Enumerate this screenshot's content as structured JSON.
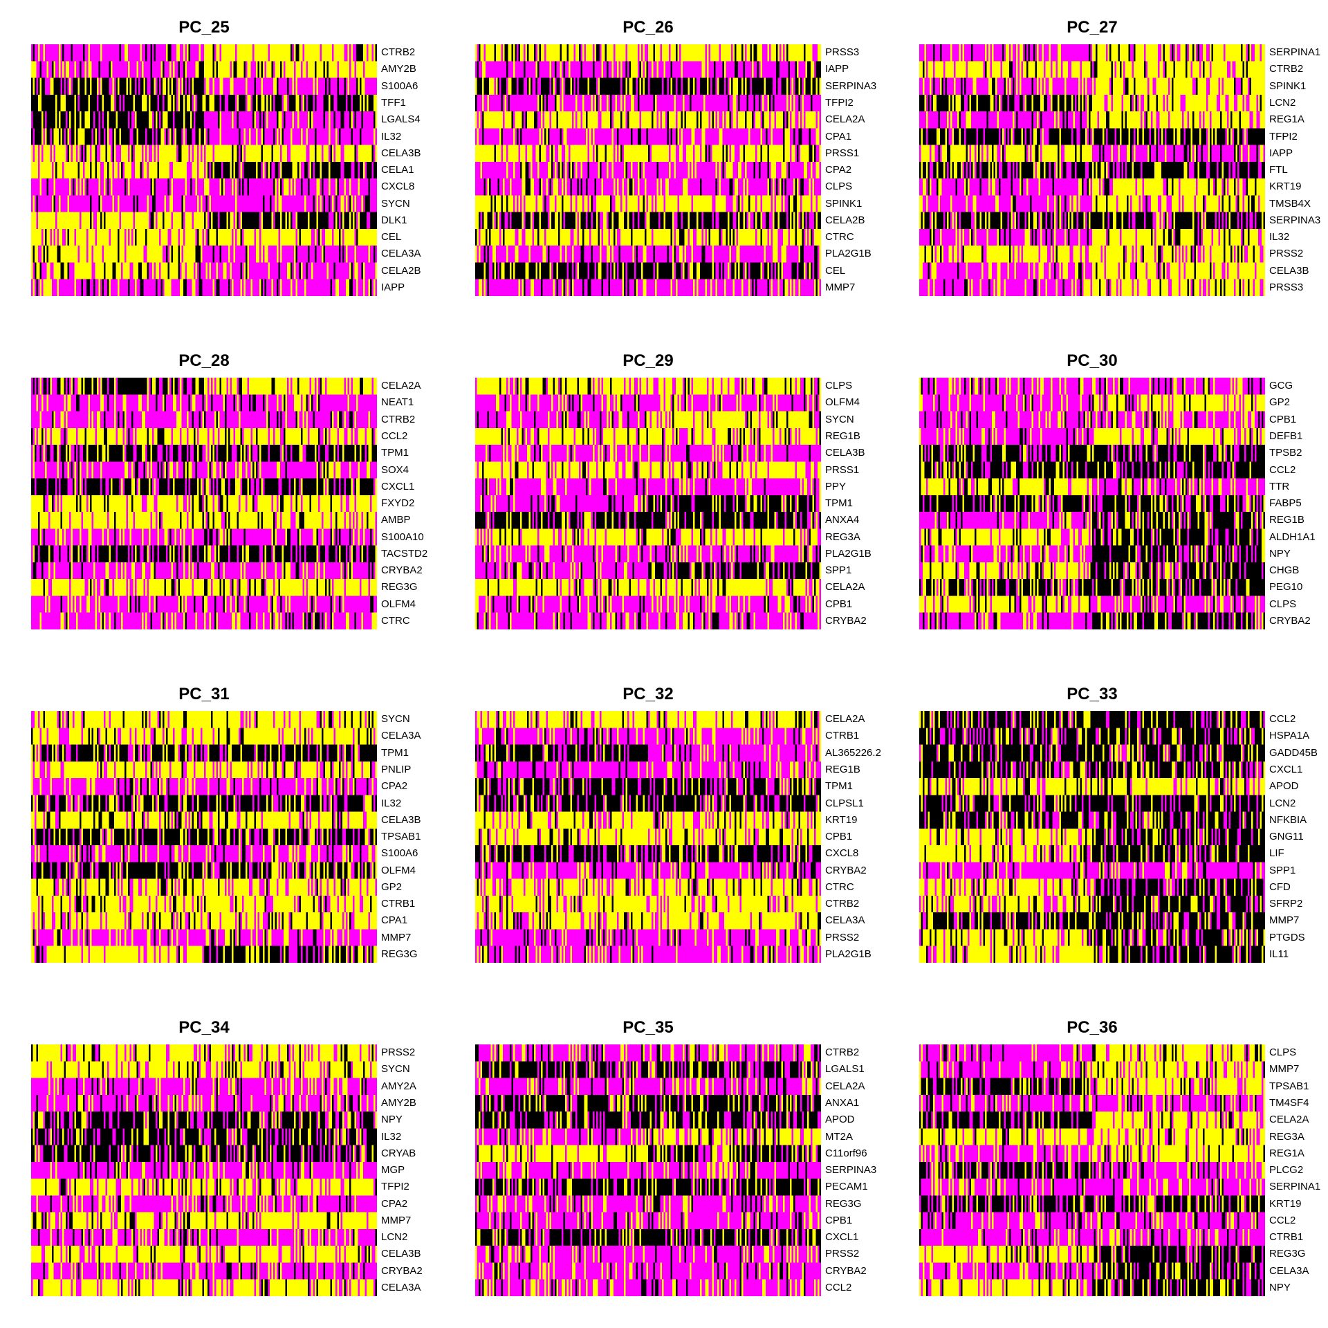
{
  "palette": {
    "low": "#ff00ff",
    "mid": "#000000",
    "high": "#ffff00"
  },
  "chart_data": [
    {
      "type": "heatmap",
      "title": "PC_25",
      "split_fraction": 0.5,
      "genes": [
        "CTRB2",
        "AMY2B",
        "S100A6",
        "TFF1",
        "LGALS4",
        "IL32",
        "CELA3B",
        "CELA1",
        "CXCL8",
        "SYCN",
        "DLK1",
        "CEL",
        "CELA3A",
        "CELA2B",
        "IAPP"
      ],
      "left_state": [
        "low",
        "low",
        "mid",
        "mid",
        "mid",
        "mid",
        "high",
        "high",
        "low",
        "low",
        "high",
        "high",
        "high",
        "high",
        "low"
      ],
      "right_state": [
        "high",
        "high",
        "low",
        "mid",
        "low",
        "low",
        "high",
        "mid",
        "low",
        "low",
        "mid",
        "high",
        "low",
        "low",
        "low"
      ]
    },
    {
      "type": "heatmap",
      "title": "PC_26",
      "split_fraction": 0.5,
      "genes": [
        "PRSS3",
        "IAPP",
        "SERPINA3",
        "TFPI2",
        "CELA2A",
        "CPA1",
        "PRSS1",
        "CPA2",
        "CLPS",
        "SPINK1",
        "CELA2B",
        "CTRC",
        "PLA2G1B",
        "CEL",
        "MMP7"
      ],
      "left_state": [
        "high",
        "low",
        "mid",
        "low",
        "high",
        "low",
        "high",
        "low",
        "low",
        "high",
        "mid",
        "high",
        "low",
        "mid",
        "low"
      ],
      "right_state": [
        "high",
        "low",
        "mid",
        "low",
        "high",
        "low",
        "high",
        "low",
        "low",
        "high",
        "mid",
        "high",
        "low",
        "mid",
        "low"
      ]
    },
    {
      "type": "heatmap",
      "title": "PC_27",
      "split_fraction": 0.5,
      "genes": [
        "SERPINA1",
        "CTRB2",
        "SPINK1",
        "LCN2",
        "REG1A",
        "TFPI2",
        "IAPP",
        "FTL",
        "KRT19",
        "TMSB4X",
        "SERPINA3",
        "IL32",
        "PRSS2",
        "CELA3B",
        "PRSS3"
      ],
      "left_state": [
        "low",
        "high",
        "low",
        "mid",
        "low",
        "mid",
        "high",
        "mid",
        "low",
        "low",
        "mid",
        "low",
        "high",
        "low",
        "low"
      ],
      "right_state": [
        "high",
        "high",
        "high",
        "high",
        "high",
        "mid",
        "low",
        "mid",
        "high",
        "high",
        "mid",
        "high",
        "high",
        "high",
        "high"
      ]
    },
    {
      "type": "heatmap",
      "title": "PC_28",
      "split_fraction": 0.5,
      "genes": [
        "CELA2A",
        "NEAT1",
        "CTRB2",
        "CCL2",
        "TPM1",
        "SOX4",
        "CXCL1",
        "FXYD2",
        "AMBP",
        "S100A10",
        "TACSTD2",
        "CRYBA2",
        "REG3G",
        "OLFM4",
        "CTRC"
      ],
      "left_state": [
        "mid",
        "low",
        "low",
        "high",
        "mid",
        "low",
        "mid",
        "high",
        "high",
        "low",
        "mid",
        "low",
        "high",
        "low",
        "low"
      ],
      "right_state": [
        "high",
        "low",
        "low",
        "high",
        "mid",
        "low",
        "mid",
        "high",
        "high",
        "low",
        "mid",
        "low",
        "high",
        "low",
        "low"
      ]
    },
    {
      "type": "heatmap",
      "title": "PC_29",
      "split_fraction": 0.5,
      "genes": [
        "CLPS",
        "OLFM4",
        "SYCN",
        "REG1B",
        "CELA3B",
        "PRSS1",
        "PPY",
        "TPM1",
        "ANXA4",
        "REG3A",
        "PLA2G1B",
        "SPP1",
        "CELA2A",
        "CPB1",
        "CRYBA2"
      ],
      "left_state": [
        "high",
        "low",
        "low",
        "high",
        "low",
        "high",
        "low",
        "low",
        "mid",
        "high",
        "low",
        "low",
        "high",
        "low",
        "low"
      ],
      "right_state": [
        "high",
        "low",
        "high",
        "high",
        "low",
        "high",
        "low",
        "mid",
        "mid",
        "high",
        "low",
        "mid",
        "high",
        "low",
        "low"
      ]
    },
    {
      "type": "heatmap",
      "title": "PC_30",
      "split_fraction": 0.5,
      "genes": [
        "GCG",
        "GP2",
        "CPB1",
        "DEFB1",
        "TPSB2",
        "CCL2",
        "TTR",
        "FABP5",
        "REG1B",
        "ALDH1A1",
        "NPY",
        "CHGB",
        "PEG10",
        "CLPS",
        "CRYBA2"
      ],
      "left_state": [
        "low",
        "low",
        "low",
        "low",
        "mid",
        "mid",
        "high",
        "mid",
        "low",
        "high",
        "low",
        "high",
        "mid",
        "high",
        "low"
      ],
      "right_state": [
        "low",
        "high",
        "low",
        "high",
        "mid",
        "mid",
        "low",
        "mid",
        "mid",
        "mid",
        "mid",
        "mid",
        "mid",
        "low",
        "mid"
      ]
    },
    {
      "type": "heatmap",
      "title": "PC_31",
      "split_fraction": 0.5,
      "genes": [
        "SYCN",
        "CELA3A",
        "TPM1",
        "PNLIP",
        "CPA2",
        "IL32",
        "CELA3B",
        "TPSAB1",
        "S100A6",
        "OLFM4",
        "GP2",
        "CTRB1",
        "CPA1",
        "MMP7",
        "REG3G"
      ],
      "left_state": [
        "high",
        "high",
        "mid",
        "high",
        "low",
        "mid",
        "high",
        "mid",
        "low",
        "mid",
        "high",
        "high",
        "high",
        "low",
        "high"
      ],
      "right_state": [
        "high",
        "high",
        "mid",
        "high",
        "low",
        "mid",
        "high",
        "mid",
        "low",
        "mid",
        "high",
        "high",
        "high",
        "low",
        "mid"
      ]
    },
    {
      "type": "heatmap",
      "title": "PC_32",
      "split_fraction": 0.5,
      "genes": [
        "CELA2A",
        "CTRB1",
        "AL365226.2",
        "REG1B",
        "TPM1",
        "CLPSL1",
        "KRT19",
        "CPB1",
        "CXCL8",
        "CRYBA2",
        "CTRC",
        "CTRB2",
        "CELA3A",
        "PRSS2",
        "PLA2G1B"
      ],
      "left_state": [
        "high",
        "low",
        "mid",
        "low",
        "mid",
        "mid",
        "high",
        "high",
        "mid",
        "low",
        "high",
        "high",
        "high",
        "low",
        "low"
      ],
      "right_state": [
        "high",
        "low",
        "low",
        "low",
        "mid",
        "mid",
        "high",
        "high",
        "mid",
        "low",
        "high",
        "high",
        "high",
        "low",
        "low"
      ]
    },
    {
      "type": "heatmap",
      "title": "PC_33",
      "split_fraction": 0.5,
      "genes": [
        "CCL2",
        "HSPA1A",
        "GADD45B",
        "CXCL1",
        "APOD",
        "LCN2",
        "NFKBIA",
        "GNG11",
        "LIF",
        "SPP1",
        "CFD",
        "SFRP2",
        "MMP7",
        "PTGDS",
        "IL11"
      ],
      "left_state": [
        "mid",
        "mid",
        "mid",
        "mid",
        "high",
        "mid",
        "mid",
        "high",
        "high",
        "low",
        "high",
        "high",
        "mid",
        "high",
        "high"
      ],
      "right_state": [
        "mid",
        "mid",
        "mid",
        "mid",
        "high",
        "mid",
        "mid",
        "mid",
        "mid",
        "low",
        "mid",
        "mid",
        "mid",
        "mid",
        "mid"
      ]
    },
    {
      "type": "heatmap",
      "title": "PC_34",
      "split_fraction": 0.5,
      "genes": [
        "PRSS2",
        "SYCN",
        "AMY2A",
        "AMY2B",
        "NPY",
        "IL32",
        "CRYAB",
        "MGP",
        "TFPI2",
        "CPA2",
        "MMP7",
        "LCN2",
        "CELA3B",
        "CRYBA2",
        "CELA3A"
      ],
      "left_state": [
        "high",
        "high",
        "low",
        "low",
        "mid",
        "mid",
        "mid",
        "low",
        "high",
        "low",
        "high",
        "low",
        "high",
        "low",
        "high"
      ],
      "right_state": [
        "high",
        "high",
        "low",
        "low",
        "mid",
        "mid",
        "mid",
        "low",
        "high",
        "low",
        "high",
        "low",
        "high",
        "low",
        "high"
      ]
    },
    {
      "type": "heatmap",
      "title": "PC_35",
      "split_fraction": 0.5,
      "genes": [
        "CTRB2",
        "LGALS1",
        "CELA2A",
        "ANXA1",
        "APOD",
        "MT2A",
        "C11orf96",
        "SERPINA3",
        "PECAM1",
        "REG3G",
        "CPB1",
        "CXCL1",
        "PRSS2",
        "CRYBA2",
        "CCL2"
      ],
      "left_state": [
        "low",
        "mid",
        "low",
        "mid",
        "mid",
        "low",
        "high",
        "low",
        "mid",
        "low",
        "low",
        "mid",
        "low",
        "low",
        "low"
      ],
      "right_state": [
        "low",
        "mid",
        "low",
        "mid",
        "mid",
        "high",
        "mid",
        "low",
        "mid",
        "low",
        "low",
        "mid",
        "low",
        "low",
        "low"
      ]
    },
    {
      "type": "heatmap",
      "title": "PC_36",
      "split_fraction": 0.5,
      "genes": [
        "CLPS",
        "MMP7",
        "TPSAB1",
        "TM4SF4",
        "CELA2A",
        "REG3A",
        "REG1A",
        "PLCG2",
        "SERPINA1",
        "KRT19",
        "CCL2",
        "CTRB1",
        "REG3G",
        "CELA3A",
        "NPY"
      ],
      "left_state": [
        "low",
        "low",
        "mid",
        "low",
        "mid",
        "high",
        "low",
        "mid",
        "low",
        "mid",
        "low",
        "low",
        "high",
        "low",
        "high"
      ],
      "right_state": [
        "high",
        "high",
        "high",
        "low",
        "high",
        "high",
        "high",
        "low",
        "low",
        "mid",
        "low",
        "low",
        "mid",
        "mid",
        "mid"
      ]
    }
  ]
}
